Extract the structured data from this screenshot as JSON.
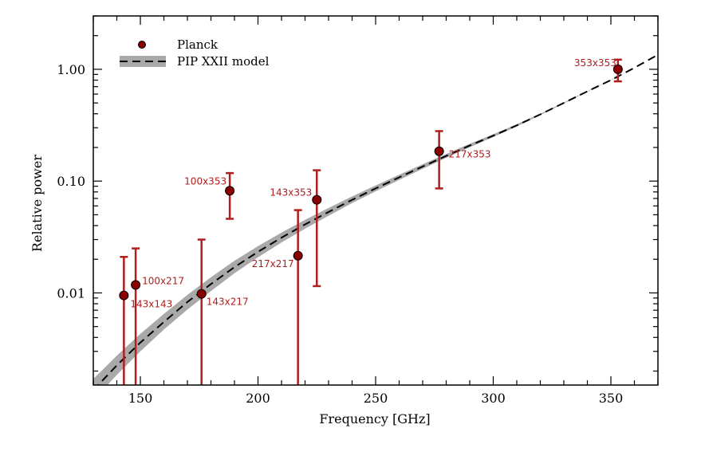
{
  "chart_data": {
    "type": "scatter",
    "xlabel": "Frequency [GHz]",
    "ylabel": "Relative power",
    "xlim": [
      130,
      370
    ],
    "ylim": [
      0.0015,
      3.0
    ],
    "yscale": "log",
    "x_ticks": [
      150,
      200,
      250,
      300,
      350
    ],
    "x_tick_labels": [
      "150",
      "200",
      "250",
      "300",
      "350"
    ],
    "y_ticks": [
      0.01,
      0.1,
      1.0
    ],
    "y_tick_labels": [
      "0.01",
      "0.10",
      "1.00"
    ],
    "grid": false,
    "legend": {
      "placement": "top-left",
      "entries": [
        {
          "label": "Planck",
          "marker": "circle"
        },
        {
          "label": "PIP XXII model",
          "marker": "dashed-line-with-band"
        }
      ]
    },
    "colors": {
      "points": "#8b0000",
      "errorbars": "#b01e1e",
      "labels": "#b01e1e",
      "model_line": "#000000",
      "model_band": "#a9a9a9"
    },
    "series": [
      {
        "name": "Planck",
        "points": [
          {
            "label": "143x143",
            "x": 143,
            "y": 0.0095,
            "y_low": 0.0013,
            "y_high": 0.021
          },
          {
            "label": "100x217",
            "x": 148,
            "y": 0.0118,
            "y_low": 0.0013,
            "y_high": 0.025
          },
          {
            "label": "143x217",
            "x": 176,
            "y": 0.0098,
            "y_low": 0.0013,
            "y_high": 0.03
          },
          {
            "label": "100x353",
            "x": 188,
            "y": 0.082,
            "y_low": 0.046,
            "y_high": 0.118
          },
          {
            "label": "217x217",
            "x": 217,
            "y": 0.0215,
            "y_low": 0.0013,
            "y_high": 0.055
          },
          {
            "label": "143x353",
            "x": 225,
            "y": 0.068,
            "y_low": 0.0115,
            "y_high": 0.125
          },
          {
            "label": "217x353",
            "x": 277,
            "y": 0.185,
            "y_low": 0.086,
            "y_high": 0.28
          },
          {
            "label": "353x353",
            "x": 353,
            "y": 1.0,
            "y_low": 0.78,
            "y_high": 1.22
          }
        ]
      },
      {
        "name": "PIP XXII model",
        "model_curve": [
          {
            "x": 130,
            "y": 0.00135,
            "y_low": 0.0011,
            "y_high": 0.0017
          },
          {
            "x": 140,
            "y": 0.00225,
            "y_low": 0.00185,
            "y_high": 0.00275
          },
          {
            "x": 150,
            "y": 0.0036,
            "y_low": 0.003,
            "y_high": 0.0043
          },
          {
            "x": 160,
            "y": 0.0055,
            "y_low": 0.0047,
            "y_high": 0.0065
          },
          {
            "x": 170,
            "y": 0.0083,
            "y_low": 0.0071,
            "y_high": 0.0096
          },
          {
            "x": 180,
            "y": 0.012,
            "y_low": 0.0104,
            "y_high": 0.0138
          },
          {
            "x": 190,
            "y": 0.017,
            "y_low": 0.015,
            "y_high": 0.0194
          },
          {
            "x": 200,
            "y": 0.0233,
            "y_low": 0.0208,
            "y_high": 0.0262
          },
          {
            "x": 210,
            "y": 0.0312,
            "y_low": 0.0283,
            "y_high": 0.0346
          },
          {
            "x": 220,
            "y": 0.041,
            "y_low": 0.0375,
            "y_high": 0.045
          },
          {
            "x": 230,
            "y": 0.053,
            "y_low": 0.049,
            "y_high": 0.0575
          },
          {
            "x": 240,
            "y": 0.068,
            "y_low": 0.0635,
            "y_high": 0.073
          },
          {
            "x": 250,
            "y": 0.086,
            "y_low": 0.081,
            "y_high": 0.0915
          },
          {
            "x": 260,
            "y": 0.108,
            "y_low": 0.1025,
            "y_high": 0.114
          },
          {
            "x": 270,
            "y": 0.135,
            "y_low": 0.129,
            "y_high": 0.1415
          },
          {
            "x": 280,
            "y": 0.168,
            "y_low": 0.1615,
            "y_high": 0.175
          },
          {
            "x": 290,
            "y": 0.208,
            "y_low": 0.201,
            "y_high": 0.2155
          },
          {
            "x": 300,
            "y": 0.255,
            "y_low": 0.248,
            "y_high": 0.2625
          },
          {
            "x": 310,
            "y": 0.315,
            "y_low": 0.3085,
            "y_high": 0.322
          },
          {
            "x": 320,
            "y": 0.395,
            "y_low": 0.389,
            "y_high": 0.401
          },
          {
            "x": 330,
            "y": 0.5,
            "y_low": 0.495,
            "y_high": 0.505
          },
          {
            "x": 340,
            "y": 0.635,
            "y_low": 0.631,
            "y_high": 0.639
          },
          {
            "x": 350,
            "y": 0.8,
            "y_low": 0.797,
            "y_high": 0.803
          },
          {
            "x": 360,
            "y": 1.03,
            "y_low": 1.03,
            "y_high": 1.03
          },
          {
            "x": 370,
            "y": 1.35,
            "y_low": 1.35,
            "y_high": 1.35
          }
        ]
      }
    ]
  }
}
